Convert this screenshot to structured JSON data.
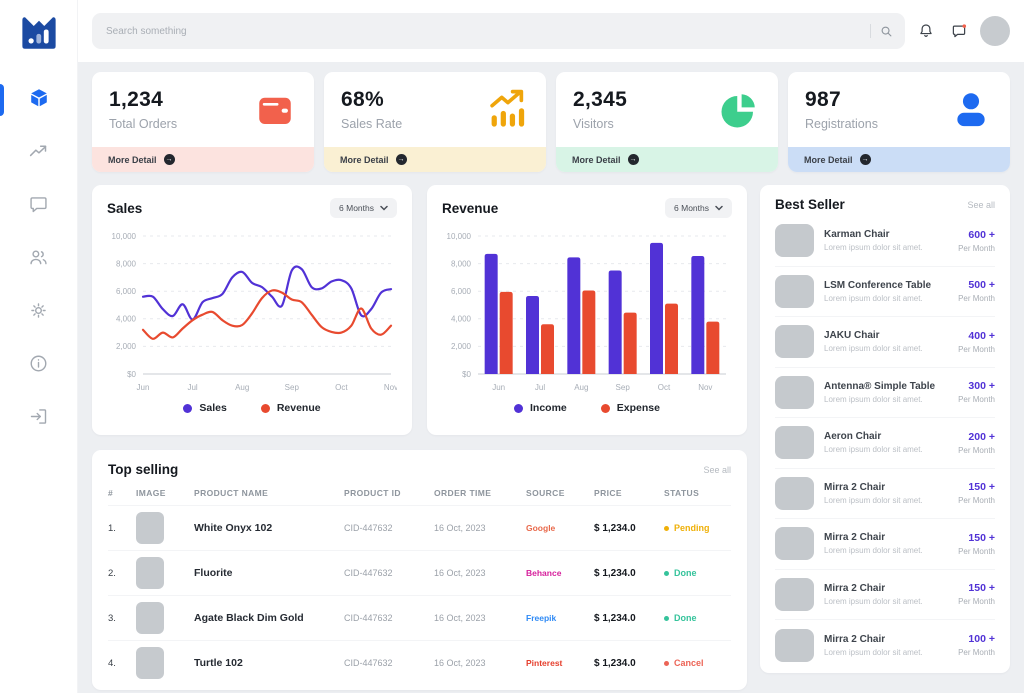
{
  "topbar": {
    "search_placeholder": "Search something"
  },
  "stats": [
    {
      "value": "1,234",
      "label": "Total Orders",
      "more_label": "More Detail",
      "accent": "#F2614C",
      "footer_bg": "#FCE3DF"
    },
    {
      "value": "68%",
      "label": "Sales Rate",
      "more_label": "More Detail",
      "accent": "#EFA50B",
      "footer_bg": "#FAF0D3"
    },
    {
      "value": "2,345",
      "label": "Visitors",
      "more_label": "More Detail",
      "accent": "#3DCE8D",
      "footer_bg": "#D8F4E6"
    },
    {
      "value": "987",
      "label": "Registrations",
      "more_label": "More Detail",
      "accent": "#1D6AF0",
      "footer_bg": "#CBDDF6"
    }
  ],
  "chart_data": [
    {
      "id": "sales",
      "type": "line",
      "title": "Sales",
      "range_label": "6 Months",
      "x_ticks": [
        "Jun",
        "Jul",
        "Aug",
        "Sep",
        "Oct",
        "Nov"
      ],
      "y_tick_labels": [
        "10,000",
        "8,000",
        "6,000",
        "4,000",
        "2,000",
        "$0"
      ],
      "ylim": [
        0,
        10000
      ],
      "grid": "dashed-horizontal",
      "legend_position": "bottom",
      "series": [
        {
          "name": "Sales",
          "color": "#5132D6",
          "values": [
            5600,
            5600,
            4700,
            4200,
            5050,
            3950,
            5200,
            5500,
            5800,
            7000,
            7400,
            6600,
            6300,
            5600,
            4950,
            7500,
            7600,
            6300,
            6200,
            6700,
            6800,
            6200,
            4250,
            4700,
            5900,
            6150
          ]
        },
        {
          "name": "Revenue",
          "color": "#E84A2F",
          "values": [
            3200,
            2550,
            3000,
            2650,
            3300,
            3900,
            4300,
            4500,
            3900,
            3500,
            3550,
            4400,
            5500,
            6050,
            5900,
            5400,
            5200,
            4300,
            3400,
            3050,
            3000,
            3500,
            4750,
            3300,
            2850,
            3500
          ]
        }
      ]
    },
    {
      "id": "revenue",
      "type": "bar",
      "title": "Revenue",
      "range_label": "6 Months",
      "categories": [
        "Jun",
        "Jul",
        "Aug",
        "Sep",
        "Oct",
        "Nov"
      ],
      "y_tick_labels": [
        "10,000",
        "8,000",
        "6,000",
        "4,000",
        "2,000",
        "$0"
      ],
      "ylim": [
        0,
        10000
      ],
      "grid": "dashed-horizontal",
      "legend_position": "bottom",
      "series": [
        {
          "name": "Income",
          "color": "#5132D6",
          "values": [
            8700,
            5650,
            8450,
            7500,
            9500,
            8550
          ]
        },
        {
          "name": "Expense",
          "color": "#E84A2F",
          "values": [
            5950,
            3600,
            6050,
            4450,
            5100,
            3800
          ]
        }
      ]
    }
  ],
  "best_seller": {
    "title": "Best Seller",
    "see_all": "See all",
    "desc": "Lorem ipsum dolor sit amet.",
    "per_label": "Per Month",
    "items": [
      {
        "name": "Karman Chair",
        "value": "600 +"
      },
      {
        "name": "LSM Conference Table",
        "value": "500 +"
      },
      {
        "name": "JAKU Chair",
        "value": "400 +"
      },
      {
        "name": "Antenna® Simple Table",
        "value": "300 +"
      },
      {
        "name": "Aeron Chair",
        "value": "200 +"
      },
      {
        "name": "Mirra 2 Chair",
        "value": "150 +"
      },
      {
        "name": "Mirra 2 Chair",
        "value": "150 +"
      },
      {
        "name": "Mirra 2 Chair",
        "value": "150 +"
      },
      {
        "name": "Mirra 2 Chair",
        "value": "100 +"
      }
    ]
  },
  "top_selling": {
    "title": "Top selling",
    "see_all": "See all",
    "columns": [
      "#",
      "IMAGE",
      "PRODUCT NAME",
      "PRODUCT ID",
      "ORDER TIME",
      "SOURCE",
      "PRICE",
      "STATUS"
    ],
    "rows": [
      {
        "num": "1.",
        "name": "White Onyx 102",
        "id": "CID-447632",
        "time": "16 Oct, 2023",
        "source": "Google",
        "source_color": "#E8684A",
        "price": "$ 1,234.0",
        "status": "Pending",
        "status_color": "#EFB008"
      },
      {
        "num": "2.",
        "name": "Fluorite",
        "id": "CID-447632",
        "time": "16 Oct, 2023",
        "source": "Behance",
        "source_color": "#D6219C",
        "price": "$ 1,234.0",
        "status": "Done",
        "status_color": "#35C39B"
      },
      {
        "num": "3.",
        "name": "Agate Black Dim Gold",
        "id": "CID-447632",
        "time": "16 Oct, 2023",
        "source": "Freepik",
        "source_color": "#2F8AF5",
        "price": "$ 1,234.0",
        "status": "Done",
        "status_color": "#35C39B"
      },
      {
        "num": "4.",
        "name": "Turtle 102",
        "id": "CID-447632",
        "time": "16 Oct, 2023",
        "source": "Pinterest",
        "source_color": "#E53E2C",
        "price": "$ 1,234.0",
        "status": "Cancel",
        "status_color": "#EC6456"
      }
    ]
  }
}
